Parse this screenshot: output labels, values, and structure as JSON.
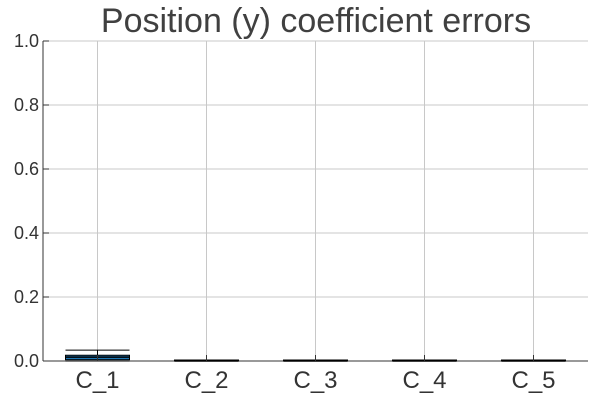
{
  "chart_data": {
    "type": "boxplot",
    "title": "Position (y) coefficient errors",
    "xlabel": "",
    "ylabel": "",
    "categories": [
      "C_1",
      "C_2",
      "C_3",
      "C_4",
      "C_5"
    ],
    "ylim": [
      0,
      1
    ],
    "yticks": [
      "0.0",
      "0.2",
      "0.4",
      "0.6",
      "0.8",
      "1.0"
    ],
    "grid": true,
    "legend": "none",
    "box_color": "#1f77b4",
    "median_color": "#000000",
    "series": [
      {
        "boxes": [
          {
            "whisker_low": 0.0,
            "q1": 0.004,
            "median": 0.012,
            "q3": 0.018,
            "whisker_high": 0.034
          },
          {
            "whisker_low": 0.0,
            "q1": 0.0,
            "median": 0.0,
            "q3": 0.0005,
            "whisker_high": 0.001
          },
          {
            "whisker_low": 0.0,
            "q1": 0.0,
            "median": 0.0,
            "q3": 0.0005,
            "whisker_high": 0.001
          },
          {
            "whisker_low": 0.0,
            "q1": 0.0,
            "median": 0.0,
            "q3": 0.0005,
            "whisker_high": 0.001
          },
          {
            "whisker_low": 0.0,
            "q1": 0.0,
            "median": 0.0,
            "q3": 0.0005,
            "whisker_high": 0.001
          }
        ]
      }
    ]
  }
}
